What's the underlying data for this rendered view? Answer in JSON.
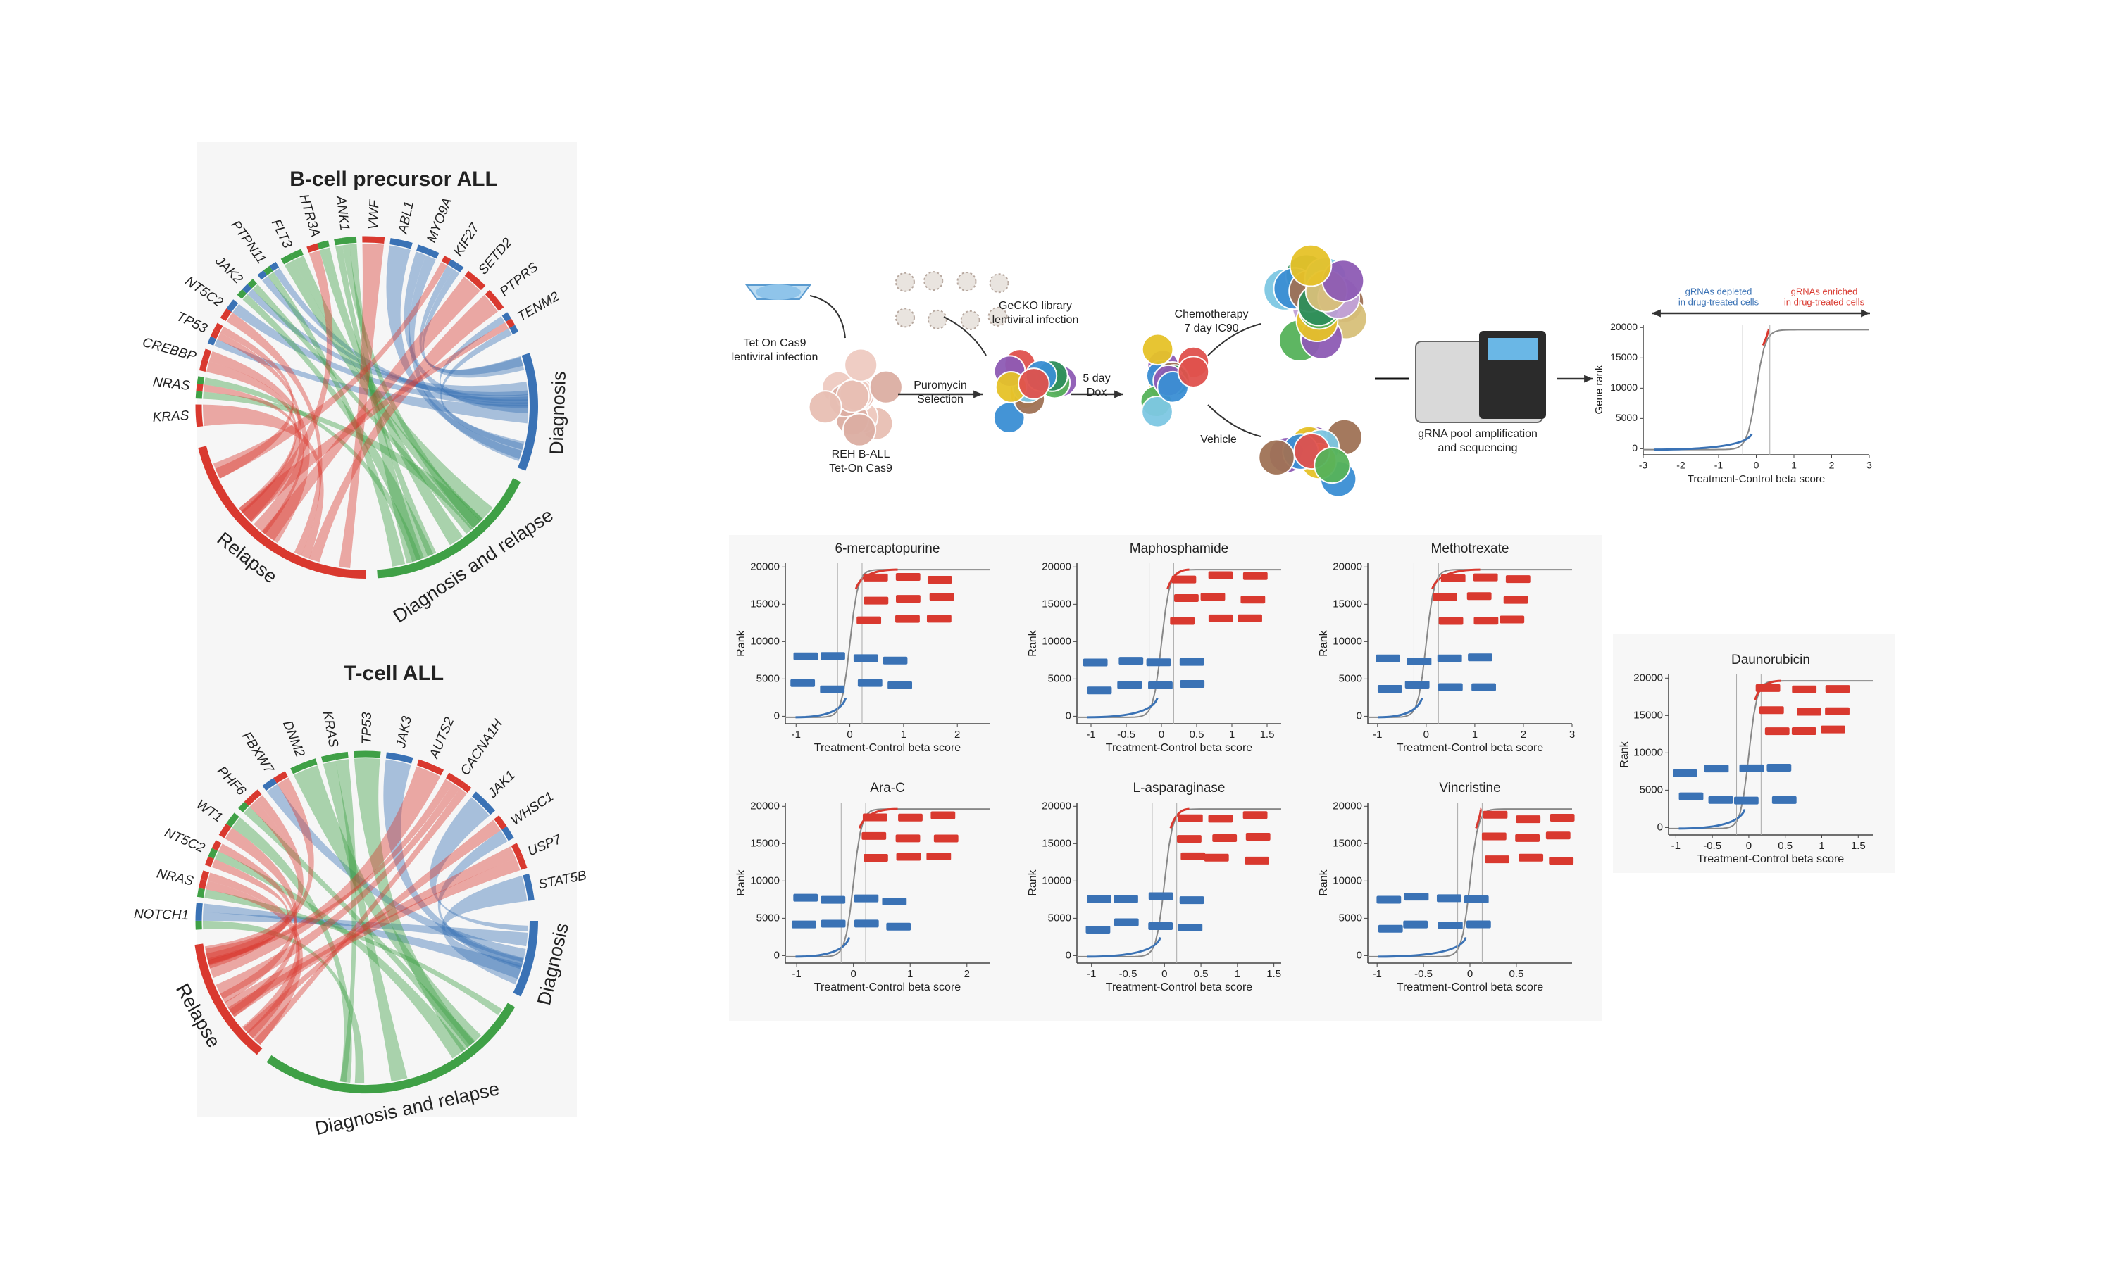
{
  "chords": [
    {
      "title": "B-cell precursor ALL",
      "genes": [
        "KRAS",
        "NRAS",
        "CREBBP",
        "TP53",
        "NT5C2",
        "JAK2",
        "PTPN11",
        "FLT3",
        "HTR3A",
        "ANK1",
        "VWF",
        "ABL1",
        "MYO9A",
        "KIF27",
        "SETD2",
        "PTPRS",
        "TENM2"
      ],
      "groups": [
        "Diagnosis",
        "Diagnosis and relapse",
        "Relapse"
      ]
    },
    {
      "title": "T-cell ALL",
      "genes": [
        "NOTCH1",
        "NRAS",
        "NT5C2",
        "WT1",
        "PHF6",
        "FBXW7",
        "DNM2",
        "KRAS",
        "TP53",
        "JAK3",
        "AUTS2",
        "CACNA1H",
        "JAK1",
        "WHSC1",
        "USP7",
        "STAT5B"
      ],
      "groups": [
        "Diagnosis",
        "Diagnosis and relapse",
        "Relapse"
      ]
    }
  ],
  "workflow": {
    "labels": [
      {
        "lines": [
          "Tet On Cas9",
          "lentiviral infection"
        ]
      },
      {
        "lines": [
          "REH B-ALL",
          "Tet-On Cas9"
        ]
      },
      {
        "lines": [
          "GeCKO library",
          "lentiviral infection"
        ]
      },
      {
        "lines": [
          "Puromycin",
          "Selection"
        ]
      },
      {
        "lines": [
          "5 day",
          "Dox"
        ]
      },
      {
        "lines": [
          "Chemotherapy",
          "7 day IC90"
        ]
      },
      {
        "lines": [
          "Vehicle"
        ]
      },
      {
        "lines": [
          "gRNA pool amplification",
          "and sequencing"
        ]
      }
    ],
    "rank_plot": {
      "depleted": [
        "gRNAs depleted",
        "in drug-treated cells"
      ],
      "enriched": [
        "gRNAs enriched",
        "in drug-treated cells"
      ],
      "xlabel": "Treatment-Control beta score",
      "ylabel": "Gene rank",
      "xlim": [
        -3,
        3
      ],
      "ylim": [
        -1000,
        20500
      ],
      "xticks": [
        -3,
        -2,
        -1,
        0,
        1,
        2,
        3
      ],
      "yticks": [
        0,
        5000,
        10000,
        15000,
        20000
      ]
    }
  },
  "screens": [
    {
      "title": "6-mercaptopurine",
      "xlabel": "Treatment-Control beta score",
      "ylabel": "Rank",
      "xlim": [
        -1.2,
        2.6
      ],
      "ylim": [
        -1000,
        20500
      ],
      "xticks": [
        -1,
        0,
        1,
        2
      ],
      "yticks": [
        0,
        5000,
        10000,
        15000,
        20000
      ]
    },
    {
      "title": "Maphosphamide",
      "xlabel": "Treatment-Control beta score",
      "ylabel": "Rank",
      "xlim": [
        -1.2,
        1.7
      ],
      "ylim": [
        -1000,
        20500
      ],
      "xticks": [
        -1,
        -0.5,
        0,
        0.5,
        1,
        1.5
      ],
      "yticks": [
        0,
        5000,
        10000,
        15000,
        20000
      ]
    },
    {
      "title": "Methotrexate",
      "xlabel": "Treatment-Control beta score",
      "ylabel": "Rank",
      "xlim": [
        -1.2,
        3
      ],
      "ylim": [
        -1000,
        20500
      ],
      "xticks": [
        -1,
        0,
        1,
        2,
        3
      ],
      "yticks": [
        0,
        5000,
        10000,
        15000,
        20000
      ]
    },
    {
      "title": "Ara-C",
      "xlabel": "Treatment-Control beta score",
      "ylabel": "Rank",
      "xlim": [
        -1.2,
        2.4
      ],
      "ylim": [
        -1000,
        20500
      ],
      "xticks": [
        -1,
        0,
        1,
        2
      ],
      "yticks": [
        0,
        5000,
        10000,
        15000,
        20000
      ]
    },
    {
      "title": "L-asparaginase",
      "xlabel": "Treatment-Control beta score",
      "ylabel": "Rank",
      "xlim": [
        -1.2,
        1.6
      ],
      "ylim": [
        -1000,
        20500
      ],
      "xticks": [
        -1,
        -0.5,
        0,
        0.5,
        1,
        1.5
      ],
      "yticks": [
        0,
        5000,
        10000,
        15000,
        20000
      ]
    },
    {
      "title": "Vincristine",
      "xlabel": "Treatment-Control beta score",
      "ylabel": "Rank",
      "xlim": [
        -1.1,
        1.1
      ],
      "ylim": [
        -1000,
        20500
      ],
      "xticks": [
        -1,
        -0.5,
        0,
        0.5
      ],
      "yticks": [
        0,
        5000,
        10000,
        15000,
        20000
      ]
    },
    {
      "title": "Daunorubicin",
      "xlabel": "Treatment-Control beta score",
      "ylabel": "Rank",
      "xlim": [
        -1.1,
        1.7
      ],
      "ylim": [
        -1000,
        20500
      ],
      "xticks": [
        -1,
        -0.5,
        0,
        0.5,
        1,
        1.5
      ],
      "yticks": [
        0,
        5000,
        10000,
        15000,
        20000
      ]
    }
  ]
}
